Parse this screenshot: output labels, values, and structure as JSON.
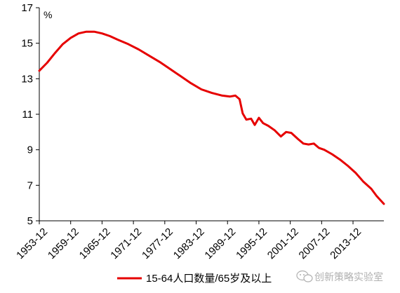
{
  "chart_data": {
    "type": "line",
    "unit": "%",
    "ylim": [
      5,
      17
    ],
    "y_ticks": [
      5,
      7,
      9,
      11,
      13,
      15,
      17
    ],
    "x_ticks": [
      "1953-12",
      "1959-12",
      "1965-12",
      "1971-12",
      "1977-12",
      "1983-12",
      "1989-12",
      "1995-12",
      "2001-12",
      "2007-12",
      "2013-12"
    ],
    "x_range": [
      1953.0,
      2018.9
    ],
    "grid": false,
    "legend_position": "bottom",
    "series": [
      {
        "name": "15-64人口数量/65岁及以上",
        "color": "#e60000",
        "points": [
          [
            1953.0,
            13.45
          ],
          [
            1954.5,
            13.9
          ],
          [
            1956.0,
            14.45
          ],
          [
            1957.5,
            14.95
          ],
          [
            1959.0,
            15.3
          ],
          [
            1960.5,
            15.55
          ],
          [
            1962.0,
            15.65
          ],
          [
            1963.5,
            15.65
          ],
          [
            1965.0,
            15.55
          ],
          [
            1966.5,
            15.4
          ],
          [
            1968.0,
            15.2
          ],
          [
            1970.0,
            14.95
          ],
          [
            1972.0,
            14.65
          ],
          [
            1974.0,
            14.3
          ],
          [
            1976.0,
            13.95
          ],
          [
            1978.0,
            13.55
          ],
          [
            1980.0,
            13.15
          ],
          [
            1982.0,
            12.75
          ],
          [
            1984.0,
            12.4
          ],
          [
            1986.0,
            12.2
          ],
          [
            1988.0,
            12.05
          ],
          [
            1989.5,
            12.0
          ],
          [
            1990.5,
            12.05
          ],
          [
            1991.3,
            11.85
          ],
          [
            1991.9,
            11.05
          ],
          [
            1992.6,
            10.7
          ],
          [
            1993.5,
            10.75
          ],
          [
            1994.2,
            10.4
          ],
          [
            1995.0,
            10.8
          ],
          [
            1995.8,
            10.5
          ],
          [
            1996.8,
            10.35
          ],
          [
            1998.0,
            10.1
          ],
          [
            1999.2,
            9.75
          ],
          [
            2000.2,
            10.0
          ],
          [
            2001.2,
            9.95
          ],
          [
            2002.5,
            9.6
          ],
          [
            2003.5,
            9.35
          ],
          [
            2004.5,
            9.3
          ],
          [
            2005.5,
            9.35
          ],
          [
            2006.5,
            9.1
          ],
          [
            2007.5,
            9.0
          ],
          [
            2009.0,
            8.75
          ],
          [
            2010.5,
            8.45
          ],
          [
            2012.0,
            8.1
          ],
          [
            2013.5,
            7.7
          ],
          [
            2015.0,
            7.2
          ],
          [
            2016.5,
            6.8
          ],
          [
            2017.5,
            6.4
          ],
          [
            2018.9,
            5.95
          ]
        ]
      }
    ]
  },
  "watermark": {
    "text": "创新策略实验室"
  }
}
